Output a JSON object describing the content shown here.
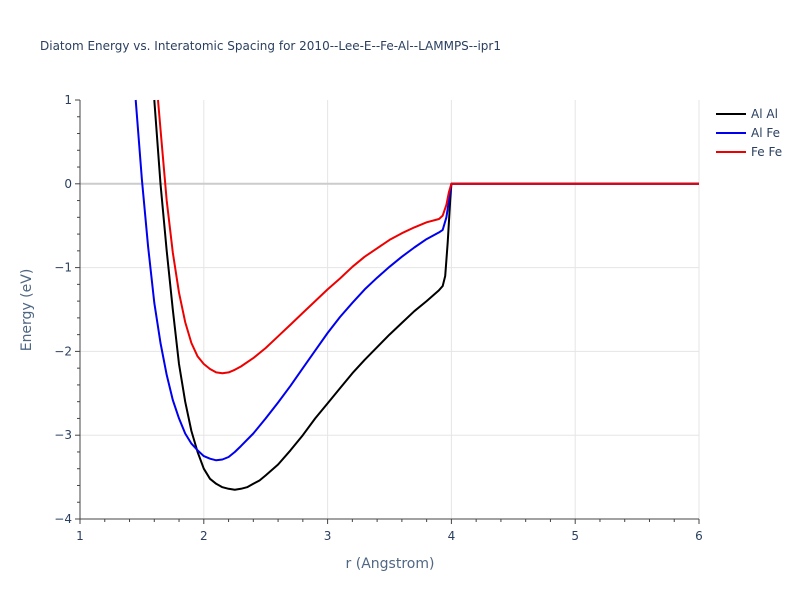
{
  "chart_data": {
    "type": "line",
    "title": "Diatom Energy vs. Interatomic Spacing for 2010--Lee-E--Fe-Al--LAMMPS--ipr1",
    "xlabel": "r (Angstrom)",
    "ylabel": "Energy (eV)",
    "xlim": [
      1,
      6
    ],
    "ylim": [
      -4,
      1
    ],
    "xticks": [
      "1",
      "2",
      "3",
      "4",
      "5",
      "6"
    ],
    "yticks": [
      "1",
      "0",
      "−1",
      "−2",
      "−3",
      "−4"
    ],
    "grid": true,
    "legend_position": "top-right",
    "series": [
      {
        "name": "Al Al",
        "color": "#000000",
        "x": [
          1.6,
          1.65,
          1.7,
          1.75,
          1.8,
          1.85,
          1.9,
          1.95,
          2.0,
          2.05,
          2.1,
          2.15,
          2.2,
          2.25,
          2.3,
          2.35,
          2.4,
          2.45,
          2.5,
          2.6,
          2.7,
          2.8,
          2.9,
          3.0,
          3.1,
          3.2,
          3.3,
          3.4,
          3.5,
          3.6,
          3.7,
          3.8,
          3.9,
          3.93,
          3.95,
          3.97,
          3.99,
          4.0,
          4.1,
          4.5,
          5.0,
          6.0
        ],
        "values": [
          1.0,
          0.0,
          -0.8,
          -1.5,
          -2.15,
          -2.6,
          -2.95,
          -3.2,
          -3.4,
          -3.52,
          -3.58,
          -3.62,
          -3.64,
          -3.65,
          -3.64,
          -3.62,
          -3.58,
          -3.54,
          -3.48,
          -3.35,
          -3.18,
          -3.0,
          -2.8,
          -2.62,
          -2.44,
          -2.26,
          -2.1,
          -1.95,
          -1.8,
          -1.66,
          -1.52,
          -1.4,
          -1.27,
          -1.22,
          -1.1,
          -0.7,
          -0.2,
          0.0,
          0.0,
          0.0,
          0.0,
          0.0
        ]
      },
      {
        "name": "Al Fe",
        "color": "#0000ee",
        "x": [
          1.45,
          1.5,
          1.55,
          1.6,
          1.65,
          1.7,
          1.75,
          1.8,
          1.85,
          1.9,
          1.95,
          2.0,
          2.05,
          2.1,
          2.15,
          2.2,
          2.25,
          2.3,
          2.4,
          2.5,
          2.6,
          2.7,
          2.8,
          2.9,
          3.0,
          3.1,
          3.2,
          3.3,
          3.4,
          3.5,
          3.6,
          3.7,
          3.8,
          3.9,
          3.93,
          3.96,
          3.98,
          4.0,
          4.1,
          5.0,
          6.0
        ],
        "values": [
          1.0,
          0.05,
          -0.75,
          -1.42,
          -1.9,
          -2.28,
          -2.58,
          -2.8,
          -2.98,
          -3.1,
          -3.18,
          -3.25,
          -3.28,
          -3.3,
          -3.29,
          -3.26,
          -3.2,
          -3.13,
          -2.98,
          -2.8,
          -2.61,
          -2.41,
          -2.2,
          -1.99,
          -1.78,
          -1.59,
          -1.42,
          -1.26,
          -1.12,
          -0.99,
          -0.87,
          -0.76,
          -0.66,
          -0.58,
          -0.55,
          -0.4,
          -0.2,
          0.0,
          0.0,
          0.0,
          0.0
        ]
      },
      {
        "name": "Fe Fe",
        "color": "#ee0000",
        "x": [
          1.63,
          1.65,
          1.7,
          1.75,
          1.8,
          1.85,
          1.9,
          1.95,
          2.0,
          2.05,
          2.1,
          2.15,
          2.2,
          2.25,
          2.3,
          2.4,
          2.5,
          2.6,
          2.7,
          2.8,
          2.9,
          3.0,
          3.1,
          3.2,
          3.3,
          3.4,
          3.5,
          3.6,
          3.7,
          3.8,
          3.9,
          3.93,
          3.96,
          3.98,
          4.0,
          4.1,
          5.0,
          6.0
        ],
        "values": [
          1.0,
          0.65,
          -0.2,
          -0.82,
          -1.3,
          -1.65,
          -1.9,
          -2.06,
          -2.15,
          -2.21,
          -2.25,
          -2.26,
          -2.25,
          -2.22,
          -2.18,
          -2.08,
          -1.96,
          -1.82,
          -1.68,
          -1.54,
          -1.4,
          -1.26,
          -1.13,
          -0.99,
          -0.87,
          -0.77,
          -0.67,
          -0.59,
          -0.52,
          -0.46,
          -0.42,
          -0.38,
          -0.25,
          -0.1,
          0.0,
          0.0,
          0.0,
          0.0
        ]
      }
    ]
  }
}
